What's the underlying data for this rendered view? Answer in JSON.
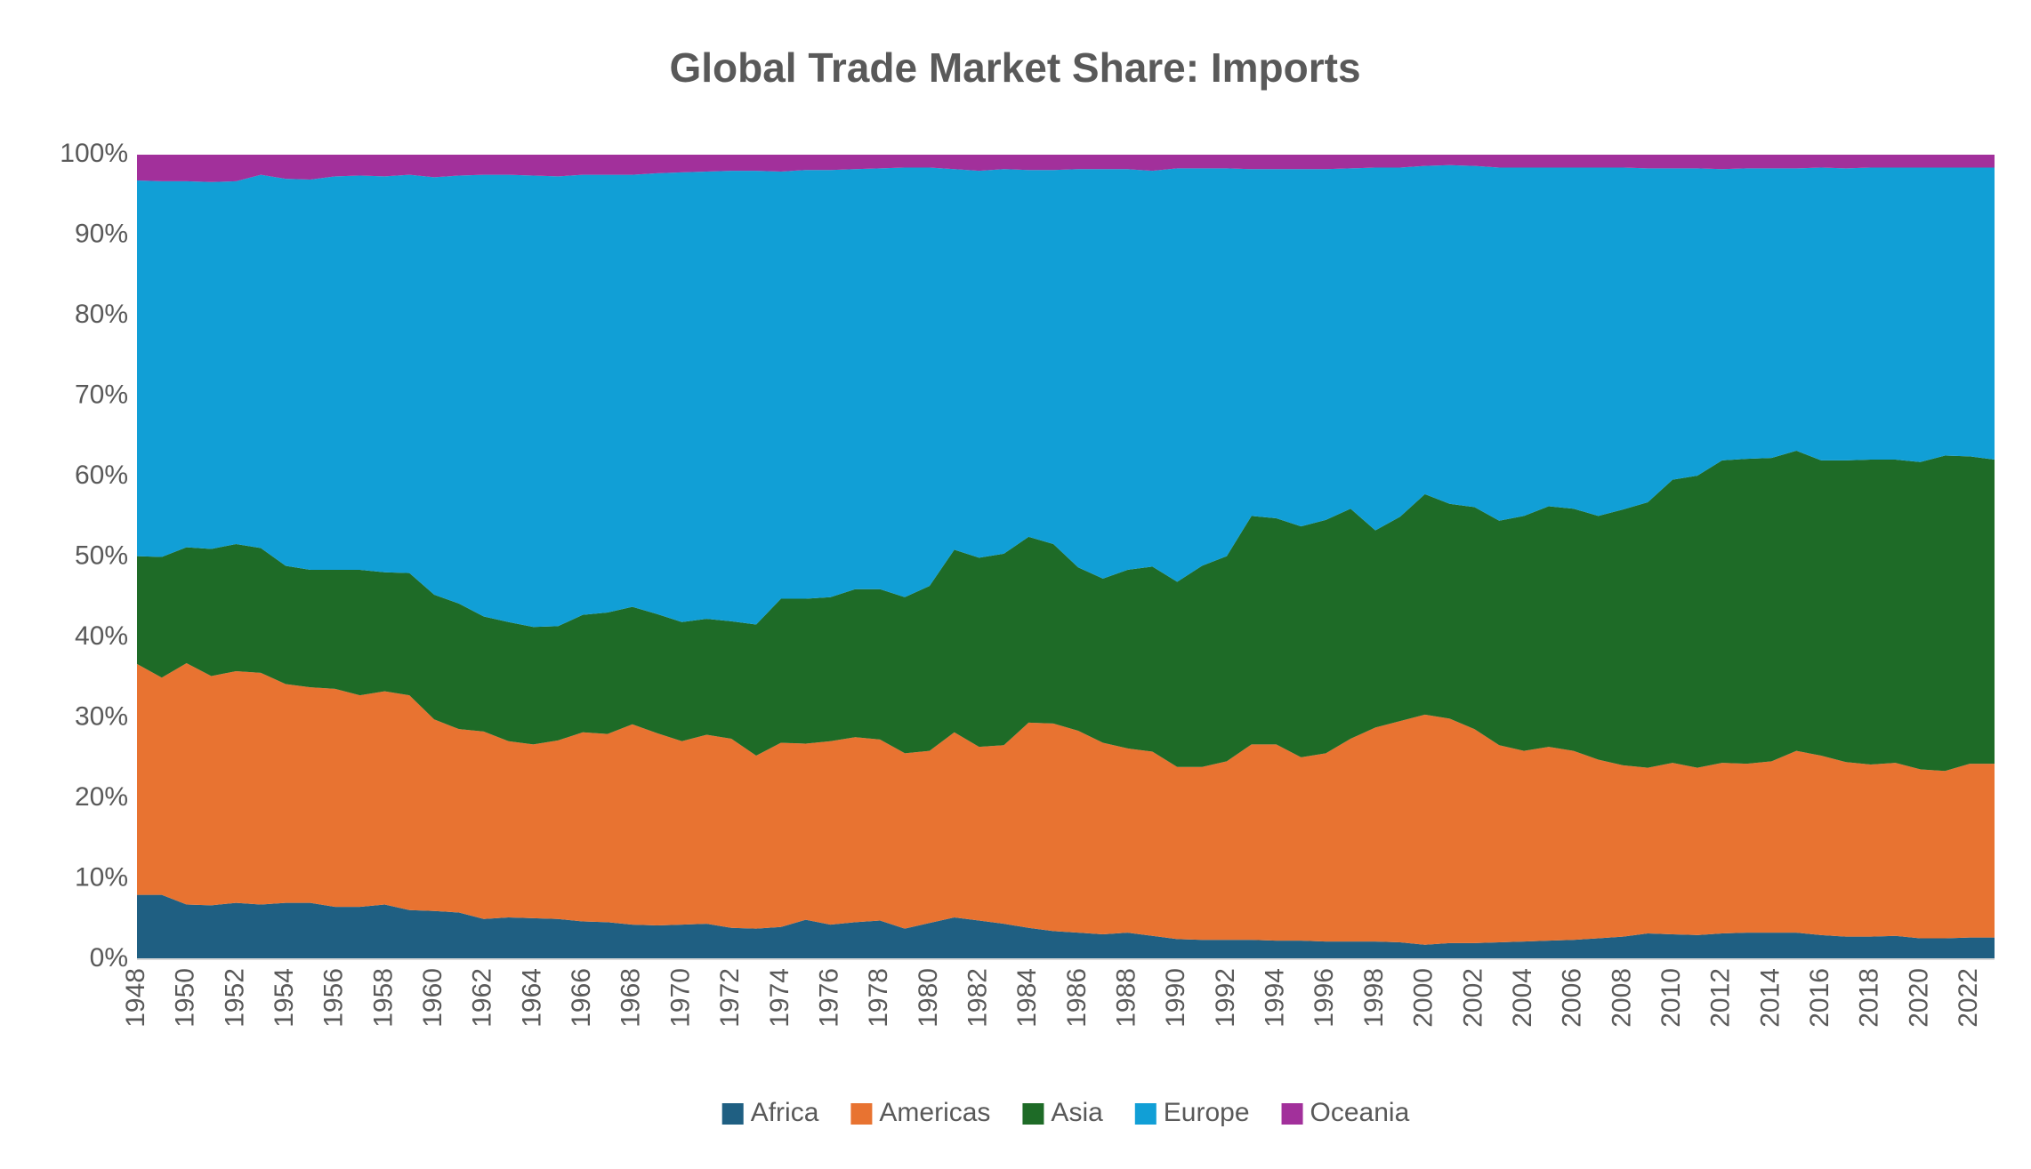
{
  "chart_data": {
    "type": "stacked-area-100",
    "title": "Global Trade Market Share: Imports",
    "x": [
      1948,
      1949,
      1950,
      1951,
      1952,
      1953,
      1954,
      1955,
      1956,
      1957,
      1958,
      1959,
      1960,
      1961,
      1962,
      1963,
      1964,
      1965,
      1966,
      1967,
      1968,
      1969,
      1970,
      1971,
      1972,
      1973,
      1974,
      1975,
      1976,
      1977,
      1978,
      1979,
      1980,
      1981,
      1982,
      1983,
      1984,
      1985,
      1986,
      1987,
      1988,
      1989,
      1990,
      1991,
      1992,
      1993,
      1994,
      1995,
      1996,
      1997,
      1998,
      1999,
      2000,
      2001,
      2002,
      2003,
      2004,
      2005,
      2006,
      2007,
      2008,
      2009,
      2010,
      2011,
      2012,
      2013,
      2014,
      2015,
      2016,
      2017,
      2018,
      2019,
      2020,
      2021,
      2022,
      2023
    ],
    "xlim": [
      1948,
      2023
    ],
    "xticks": [
      1948,
      1950,
      1952,
      1954,
      1956,
      1958,
      1960,
      1962,
      1964,
      1966,
      1968,
      1970,
      1972,
      1974,
      1976,
      1978,
      1980,
      1982,
      1984,
      1986,
      1988,
      1990,
      1992,
      1994,
      1996,
      1998,
      2000,
      2002,
      2004,
      2006,
      2008,
      2010,
      2012,
      2014,
      2016,
      2018,
      2020,
      2022
    ],
    "ylim": [
      0,
      100
    ],
    "yticks": [
      {
        "value": 0,
        "label": "0%"
      },
      {
        "value": 10,
        "label": "10%"
      },
      {
        "value": 20,
        "label": "20%"
      },
      {
        "value": 30,
        "label": "30%"
      },
      {
        "value": 40,
        "label": "40%"
      },
      {
        "value": 50,
        "label": "50%"
      },
      {
        "value": 60,
        "label": "60%"
      },
      {
        "value": 70,
        "label": "70%"
      },
      {
        "value": 80,
        "label": "80%"
      },
      {
        "value": 90,
        "label": "90%"
      },
      {
        "value": 100,
        "label": "100%"
      }
    ],
    "grid": false,
    "legend": "bottom",
    "series": [
      {
        "name": "Africa",
        "color": "#1f5f82",
        "values": [
          8.0,
          8.0,
          6.8,
          6.7,
          7.0,
          6.8,
          7.0,
          7.0,
          6.5,
          6.5,
          6.8,
          6.1,
          6.0,
          5.8,
          5.0,
          5.2,
          5.1,
          5.0,
          4.7,
          4.6,
          4.3,
          4.2,
          4.3,
          4.4,
          3.9,
          3.8,
          4.0,
          4.9,
          4.3,
          4.6,
          4.8,
          3.8,
          4.5,
          5.2,
          4.8,
          4.4,
          3.9,
          3.5,
          3.3,
          3.1,
          3.3,
          2.9,
          2.5,
          2.4,
          2.4,
          2.4,
          2.3,
          2.3,
          2.2,
          2.2,
          2.2,
          2.1,
          1.8,
          2.0,
          2.0,
          2.1,
          2.2,
          2.3,
          2.4,
          2.6,
          2.8,
          3.2,
          3.1,
          3.0,
          3.2,
          3.3,
          3.3,
          3.3,
          3.0,
          2.8,
          2.8,
          2.9,
          2.6,
          2.6,
          2.7,
          2.7
        ]
      },
      {
        "name": "Americas",
        "color": "#e87331",
        "values": [
          28.7,
          27.0,
          30.0,
          28.5,
          28.8,
          28.8,
          27.2,
          26.8,
          27.1,
          26.3,
          26.5,
          26.7,
          23.8,
          22.8,
          23.3,
          21.9,
          21.6,
          22.2,
          23.5,
          23.4,
          24.9,
          23.9,
          22.8,
          23.5,
          23.5,
          21.5,
          22.9,
          21.9,
          22.8,
          23.0,
          22.5,
          21.8,
          21.4,
          23.0,
          21.6,
          22.2,
          25.5,
          25.8,
          25.1,
          23.8,
          22.9,
          22.9,
          21.4,
          21.5,
          22.2,
          24.3,
          24.4,
          22.8,
          23.4,
          25.2,
          26.6,
          27.5,
          28.6,
          27.9,
          26.6,
          24.5,
          23.7,
          24.1,
          23.5,
          22.2,
          21.3,
          20.6,
          21.3,
          20.8,
          21.2,
          21.0,
          21.3,
          22.6,
          22.3,
          21.7,
          21.4,
          21.5,
          21.0,
          20.8,
          21.6,
          21.6
        ]
      },
      {
        "name": "Asia",
        "color": "#1e6b27",
        "values": [
          13.4,
          15.0,
          14.4,
          15.8,
          15.8,
          15.5,
          14.7,
          14.6,
          14.8,
          15.6,
          14.8,
          15.2,
          15.5,
          15.6,
          14.3,
          14.8,
          14.6,
          14.2,
          14.6,
          15.1,
          14.6,
          14.8,
          14.8,
          14.4,
          14.6,
          16.3,
          17.9,
          18.0,
          17.9,
          18.4,
          18.7,
          19.4,
          20.5,
          22.7,
          23.5,
          23.8,
          23.1,
          22.3,
          20.3,
          20.4,
          22.2,
          23.0,
          23.0,
          25.0,
          25.5,
          28.4,
          28.1,
          28.7,
          29.0,
          28.6,
          24.5,
          25.4,
          27.4,
          26.7,
          27.6,
          27.9,
          29.2,
          29.9,
          30.1,
          30.3,
          31.8,
          33.0,
          35.2,
          36.3,
          37.6,
          37.9,
          37.7,
          37.3,
          36.7,
          37.5,
          37.9,
          37.7,
          38.2,
          39.2,
          38.2,
          37.8
        ]
      },
      {
        "name": "Europe",
        "color": "#119fd6",
        "values": [
          46.7,
          46.7,
          45.5,
          45.6,
          45.1,
          46.4,
          48.1,
          48.5,
          48.9,
          49.0,
          49.2,
          49.5,
          51.9,
          53.2,
          54.9,
          55.6,
          56.1,
          55.9,
          54.7,
          54.4,
          53.7,
          54.8,
          55.9,
          55.6,
          56.0,
          56.4,
          53.1,
          53.3,
          53.1,
          52.2,
          52.3,
          53.4,
          52.0,
          47.3,
          48.1,
          47.8,
          45.6,
          46.5,
          49.5,
          50.9,
          49.8,
          49.2,
          51.4,
          49.4,
          48.2,
          43.1,
          43.4,
          44.4,
          43.6,
          42.3,
          45.1,
          43.4,
          40.8,
          42.1,
          42.4,
          43.9,
          43.3,
          42.1,
          42.4,
          43.3,
          42.5,
          41.5,
          38.7,
          38.2,
          36.2,
          36.1,
          36.0,
          35.1,
          36.4,
          36.3,
          36.3,
          36.3,
          36.6,
          35.8,
          35.9,
          36.3
        ]
      },
      {
        "name": "Oceania",
        "color": "#a2309b",
        "values": [
          3.2,
          3.3,
          3.3,
          3.4,
          3.3,
          2.5,
          3.0,
          3.1,
          2.7,
          2.6,
          2.7,
          2.5,
          2.8,
          2.6,
          2.5,
          2.5,
          2.6,
          2.7,
          2.5,
          2.5,
          2.5,
          2.3,
          2.2,
          2.1,
          2.0,
          2.0,
          2.1,
          1.9,
          1.9,
          1.8,
          1.7,
          1.6,
          1.6,
          1.8,
          2.0,
          1.8,
          1.9,
          1.9,
          1.8,
          1.8,
          1.8,
          2.0,
          1.7,
          1.7,
          1.7,
          1.8,
          1.8,
          1.8,
          1.8,
          1.7,
          1.6,
          1.6,
          1.4,
          1.3,
          1.4,
          1.6,
          1.6,
          1.6,
          1.6,
          1.6,
          1.6,
          1.7,
          1.7,
          1.7,
          1.8,
          1.7,
          1.7,
          1.7,
          1.6,
          1.7,
          1.6,
          1.6,
          1.6,
          1.6,
          1.6,
          1.6
        ]
      }
    ]
  }
}
